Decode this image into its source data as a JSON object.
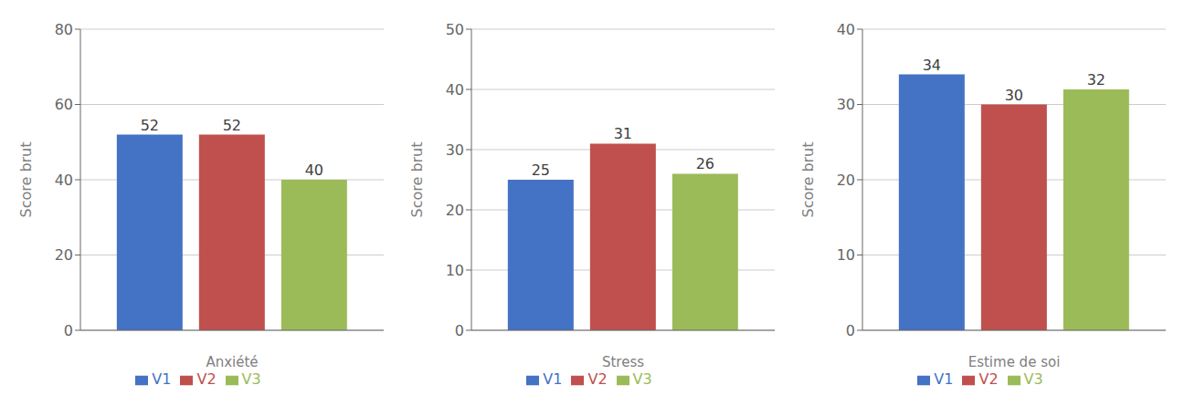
{
  "chart_data": [
    {
      "type": "bar",
      "xlabel": "Anxiété",
      "ylabel": "Score brut",
      "categories": [
        null
      ],
      "series": [
        {
          "name": "V1",
          "color": "#4472C4",
          "values": [
            52
          ]
        },
        {
          "name": "V2",
          "color": "#C0504D",
          "values": [
            52
          ]
        },
        {
          "name": "V3",
          "color": "#9BBB59",
          "values": [
            40
          ]
        }
      ],
      "ylim": [
        0,
        80
      ],
      "yticks": [
        0,
        20,
        40,
        60,
        80
      ],
      "grid": true,
      "legend": "bottom",
      "data_labels": true,
      "tick_labels": "y"
    },
    {
      "type": "bar",
      "xlabel": "Stress",
      "ylabel": "Score brut",
      "categories": [
        null
      ],
      "series": [
        {
          "name": "V1",
          "color": "#4472C4",
          "values": [
            25
          ]
        },
        {
          "name": "V2",
          "color": "#C0504D",
          "values": [
            31
          ]
        },
        {
          "name": "V3",
          "color": "#9BBB59",
          "values": [
            26
          ]
        }
      ],
      "ylim": [
        0,
        50
      ],
      "yticks": [
        0,
        10,
        20,
        30,
        40,
        50
      ],
      "grid": true,
      "legend": "bottom",
      "data_labels": true,
      "tick_labels": "y"
    },
    {
      "type": "bar",
      "xlabel": "Estime de soi",
      "ylabel": "Score brut",
      "categories": [
        null
      ],
      "series": [
        {
          "name": "V1",
          "color": "#4472C4",
          "values": [
            34
          ]
        },
        {
          "name": "V2",
          "color": "#C0504D",
          "values": [
            30
          ]
        },
        {
          "name": "V3",
          "color": "#9BBB59",
          "values": [
            32
          ]
        }
      ],
      "ylim": [
        0,
        40
      ],
      "yticks": [
        0,
        10,
        20,
        30,
        40
      ],
      "grid": true,
      "legend": "bottom",
      "data_labels": true,
      "tick_labels": "y"
    }
  ]
}
